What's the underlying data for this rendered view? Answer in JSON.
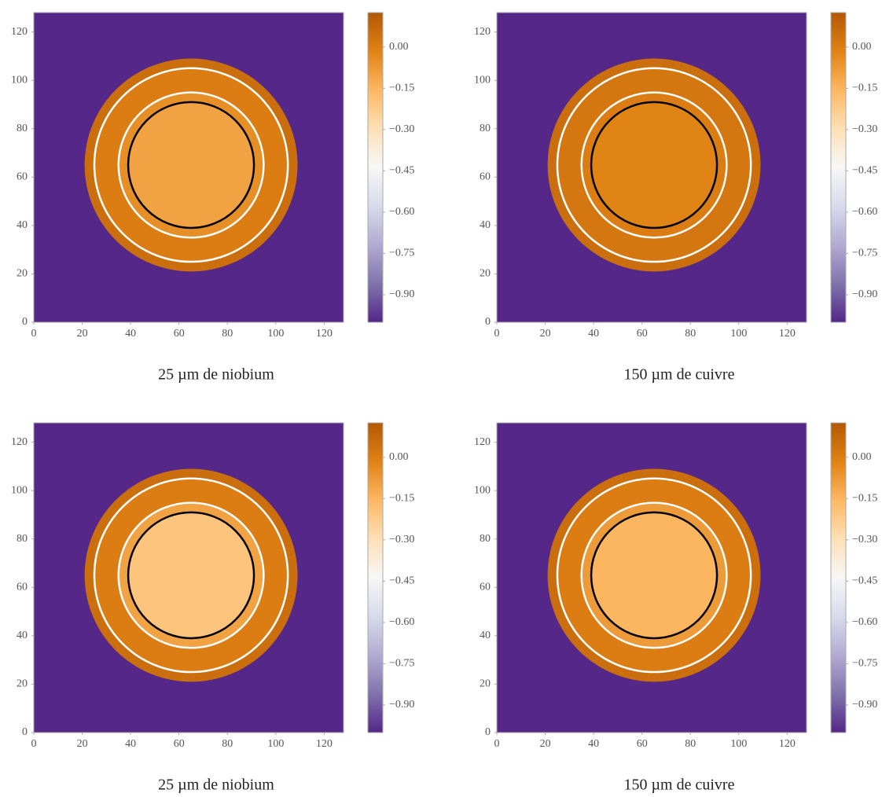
{
  "chart_data": [
    {
      "type": "heatmap",
      "title": "25 µm de niobium",
      "xlim": [
        0,
        128
      ],
      "ylim": [
        128,
        0
      ],
      "xticks": [
        0,
        20,
        40,
        60,
        80,
        100,
        120
      ],
      "yticks": [
        0,
        20,
        40,
        60,
        80,
        100,
        120
      ],
      "clim": [
        -1.0,
        0.125
      ],
      "cticks": [
        {
          "value": 0,
          "label": "0.00"
        },
        {
          "value": -0.15,
          "label": "−0.15"
        },
        {
          "value": -0.3,
          "label": "−0.30"
        },
        {
          "value": -0.45,
          "label": "−0.45"
        },
        {
          "value": -0.6,
          "label": "−0.60"
        },
        {
          "value": -0.75,
          "label": "−0.75"
        },
        {
          "value": -0.9,
          "label": "−0.90"
        }
      ],
      "colormap": [
        "#542788",
        "#8073ac",
        "#b2abd2",
        "#d8daeb",
        "#f7f7f7",
        "#fee0b6",
        "#fdb863",
        "#e08214",
        "#b35806"
      ],
      "background": -1.0,
      "zones": [
        {
          "r_out": 44,
          "value": 0.05
        },
        {
          "r_out": 40,
          "value": 0.0
        },
        {
          "r_out": 30,
          "value": -0.05
        },
        {
          "r_out": 26,
          "value": -0.1
        }
      ],
      "center": [
        65,
        65
      ],
      "circles": [
        {
          "r": 40,
          "color": "#ffffff"
        },
        {
          "r": 30,
          "color": "#ffffff"
        },
        {
          "r": 26,
          "color": "#000000"
        }
      ]
    },
    {
      "type": "heatmap",
      "title": "150 µm de cuivre",
      "xlim": [
        0,
        128
      ],
      "ylim": [
        128,
        0
      ],
      "xticks": [
        0,
        20,
        40,
        60,
        80,
        100,
        120
      ],
      "yticks": [
        0,
        20,
        40,
        60,
        80,
        100,
        120
      ],
      "clim": [
        -1.0,
        0.125
      ],
      "cticks": [
        {
          "value": 0,
          "label": "0.00"
        },
        {
          "value": -0.15,
          "label": "−0.15"
        },
        {
          "value": -0.3,
          "label": "−0.30"
        },
        {
          "value": -0.45,
          "label": "−0.45"
        },
        {
          "value": -0.6,
          "label": "−0.60"
        },
        {
          "value": -0.75,
          "label": "−0.75"
        },
        {
          "value": -0.9,
          "label": "−0.90"
        }
      ],
      "colormap": [
        "#542788",
        "#8073ac",
        "#b2abd2",
        "#d8daeb",
        "#f7f7f7",
        "#fee0b6",
        "#fdb863",
        "#e08214",
        "#b35806"
      ],
      "background": -1.0,
      "zones": [
        {
          "r_out": 44,
          "value": 0.05
        },
        {
          "r_out": 40,
          "value": 0.02
        },
        {
          "r_out": 30,
          "value": 0.0
        },
        {
          "r_out": 26,
          "value": -0.02
        }
      ],
      "center": [
        65,
        65
      ],
      "circles": [
        {
          "r": 40,
          "color": "#ffffff"
        },
        {
          "r": 30,
          "color": "#ffffff"
        },
        {
          "r": 26,
          "color": "#000000"
        }
      ]
    },
    {
      "type": "heatmap",
      "title": "25 µm de niobium",
      "xlim": [
        0,
        128
      ],
      "ylim": [
        128,
        0
      ],
      "xticks": [
        0,
        20,
        40,
        60,
        80,
        100,
        120
      ],
      "yticks": [
        0,
        20,
        40,
        60,
        80,
        100,
        120
      ],
      "clim": [
        -1.0,
        0.125
      ],
      "cticks": [
        {
          "value": 0,
          "label": "0.00"
        },
        {
          "value": -0.15,
          "label": "−0.15"
        },
        {
          "value": -0.3,
          "label": "−0.30"
        },
        {
          "value": -0.45,
          "label": "−0.45"
        },
        {
          "value": -0.6,
          "label": "−0.60"
        },
        {
          "value": -0.75,
          "label": "−0.75"
        },
        {
          "value": -0.9,
          "label": "−0.90"
        }
      ],
      "colormap": [
        "#542788",
        "#8073ac",
        "#b2abd2",
        "#d8daeb",
        "#f7f7f7",
        "#fee0b6",
        "#fdb863",
        "#e08214",
        "#b35806"
      ],
      "background": -1.0,
      "zones": [
        {
          "r_out": 44,
          "value": 0.05
        },
        {
          "r_out": 40,
          "value": 0.0
        },
        {
          "r_out": 30,
          "value": -0.1
        },
        {
          "r_out": 26,
          "value": -0.2
        }
      ],
      "center": [
        65,
        65
      ],
      "circles": [
        {
          "r": 40,
          "color": "#ffffff"
        },
        {
          "r": 30,
          "color": "#ffffff"
        },
        {
          "r": 26,
          "color": "#000000"
        }
      ]
    },
    {
      "type": "heatmap",
      "title": "150 µm de cuivre",
      "xlim": [
        0,
        128
      ],
      "ylim": [
        128,
        0
      ],
      "xticks": [
        0,
        20,
        40,
        60,
        80,
        100,
        120
      ],
      "yticks": [
        0,
        20,
        40,
        60,
        80,
        100,
        120
      ],
      "clim": [
        -1.0,
        0.125
      ],
      "cticks": [
        {
          "value": 0,
          "label": "0.00"
        },
        {
          "value": -0.15,
          "label": "−0.15"
        },
        {
          "value": -0.3,
          "label": "−0.30"
        },
        {
          "value": -0.45,
          "label": "−0.45"
        },
        {
          "value": -0.6,
          "label": "−0.60"
        },
        {
          "value": -0.75,
          "label": "−0.75"
        },
        {
          "value": -0.9,
          "label": "−0.90"
        }
      ],
      "colormap": [
        "#542788",
        "#8073ac",
        "#b2abd2",
        "#d8daeb",
        "#f7f7f7",
        "#fee0b6",
        "#fdb863",
        "#e08214",
        "#b35806"
      ],
      "background": -1.0,
      "zones": [
        {
          "r_out": 44,
          "value": 0.05
        },
        {
          "r_out": 40,
          "value": 0.0
        },
        {
          "r_out": 30,
          "value": -0.08
        },
        {
          "r_out": 26,
          "value": -0.15
        }
      ],
      "center": [
        65,
        65
      ],
      "circles": [
        {
          "r": 40,
          "color": "#ffffff"
        },
        {
          "r": 30,
          "color": "#ffffff"
        },
        {
          "r": 26,
          "color": "#000000"
        }
      ]
    }
  ]
}
